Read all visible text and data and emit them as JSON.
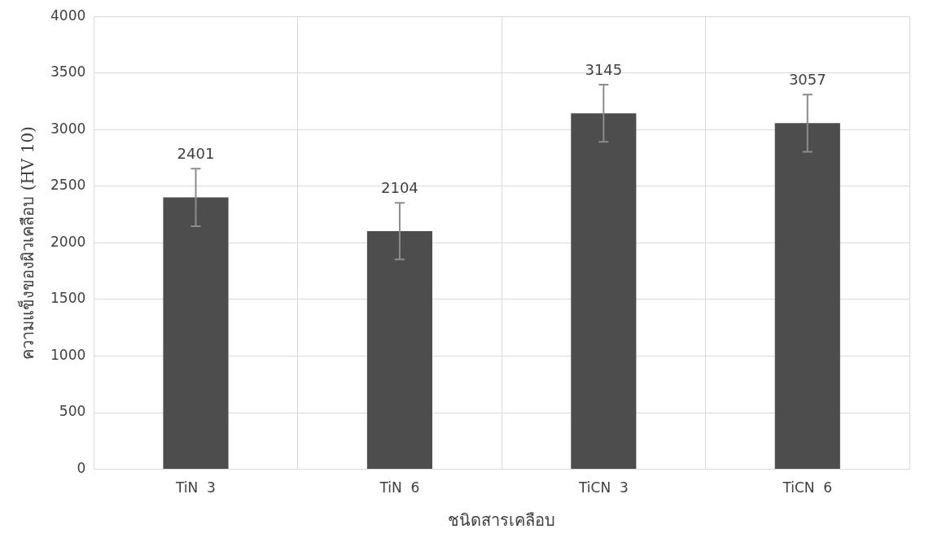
{
  "chart_data": {
    "type": "bar",
    "xlabel": "ชนิดสารเคลือบ",
    "ylabel": "ความแข็งของผิวเคลือบ (HV 10)",
    "categories": [
      "TiN  3",
      "TiN  6",
      "TiCN  3",
      "TiCN  6"
    ],
    "values": [
      2401,
      2104,
      3145,
      3057
    ],
    "color": "#4d4d4d",
    "errors": [
      255,
      250,
      253,
      252
    ],
    "ylim": [
      0,
      4000
    ],
    "yticks": [
      0,
      500,
      1000,
      1500,
      2000,
      2500,
      3000,
      3500,
      4000
    ],
    "grid": true,
    "data_labels": true
  }
}
